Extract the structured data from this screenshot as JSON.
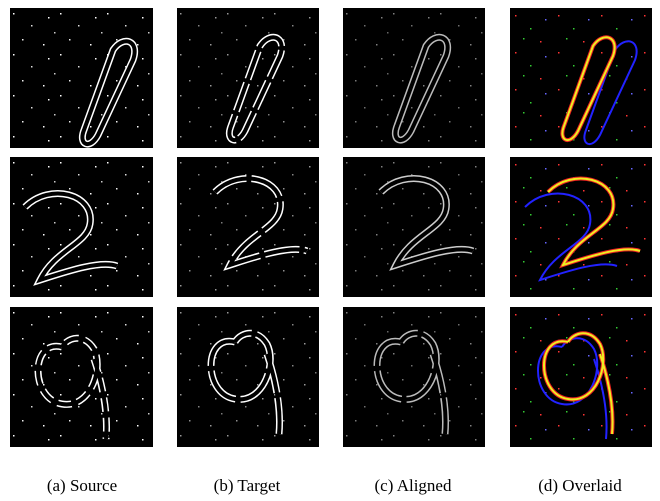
{
  "figure": {
    "captions": [
      "(a) Source",
      "(b) Target",
      "(c) Aligned",
      "(d) Overlaid"
    ]
  }
}
